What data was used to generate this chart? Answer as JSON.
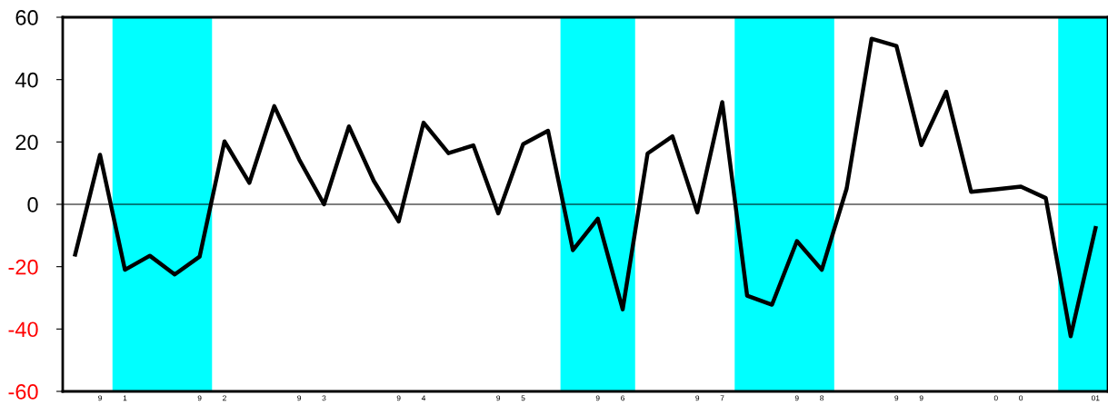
{
  "chart_data": {
    "type": "line",
    "categories": [
      null,
      "9",
      "1",
      null,
      null,
      "9",
      "2",
      null,
      null,
      "9",
      "3",
      null,
      null,
      "9",
      "4",
      null,
      null,
      "9",
      "5",
      null,
      null,
      "9",
      "6",
      null,
      null,
      "9",
      "7",
      null,
      null,
      "9",
      "8",
      null,
      null,
      "9",
      "9",
      null,
      null,
      "0",
      "0",
      null,
      null,
      "01"
    ],
    "series": [
      {
        "color": "#000000",
        "values": [
          -16.1,
          15.9,
          -21,
          -16.5,
          -22.5,
          -16.8,
          20.2,
          6.9,
          31.5,
          14.4,
          0,
          25,
          7.5,
          -5.5,
          26.2,
          16.4,
          18.9,
          -2.9,
          19.3,
          23.6,
          -14.7,
          -4.6,
          -33.7,
          16.3,
          21.8,
          -2.6,
          32.8,
          -29.3,
          -32.2,
          -11.8,
          -21,
          5.1,
          53.1,
          50.8,
          19,
          36.1,
          4,
          4.8,
          5.7,
          2,
          -42.3,
          -7.6
        ]
      }
    ],
    "ylim": [
      -60,
      60
    ],
    "yticks": [
      -60,
      -40,
      -20,
      0,
      20,
      40,
      60
    ],
    "ref_lines": [
      {
        "axis": "y",
        "value": 0,
        "color": "#000000",
        "line_style": "solid"
      }
    ],
    "grid": false,
    "legend": false,
    "marker": "none",
    "line_style": "solid"
  }
}
